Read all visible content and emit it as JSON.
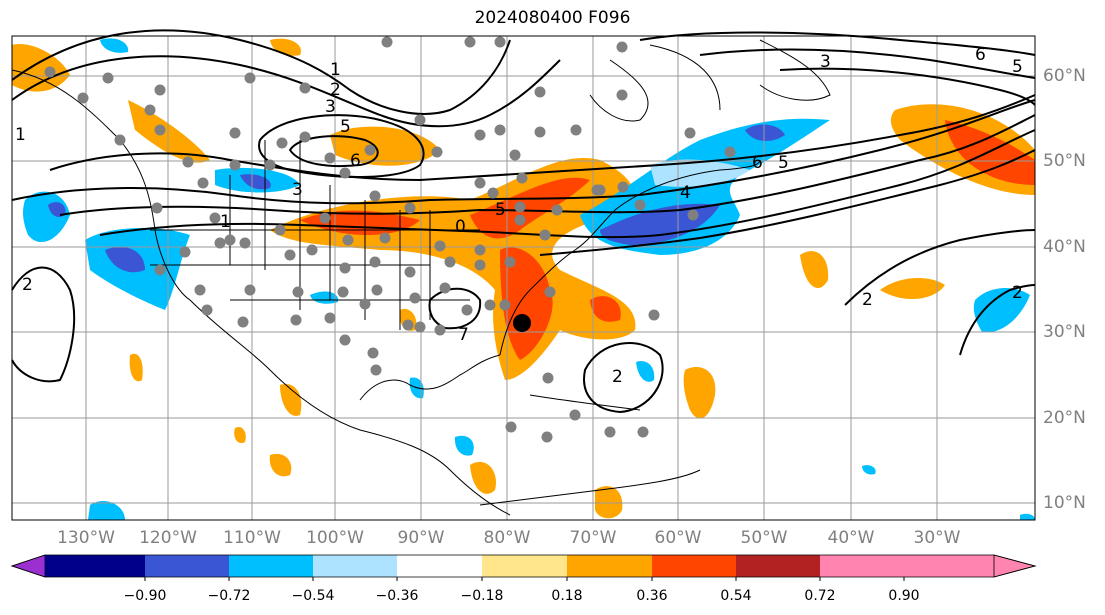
{
  "title": "2024080400 F096",
  "longitude_labels": [
    "130°W",
    "120°W",
    "110°W",
    "100°W",
    "90°W",
    "80°W",
    "70°W",
    "60°W",
    "50°W",
    "40°W",
    "30°W"
  ],
  "latitude_labels": [
    "60°N",
    "50°N",
    "40°N",
    "30°N",
    "20°N",
    "10°N"
  ],
  "colorbar": {
    "tick_labels": [
      "−0.90",
      "−0.72",
      "−0.54",
      "−0.36",
      "−0.18",
      "0.18",
      "0.36",
      "0.54",
      "0.72",
      "0.90"
    ],
    "colors": [
      "#9b2fd0",
      "#00008b",
      "#3a56d4",
      "#00bfff",
      "#aee3ff",
      "#ffffff",
      "#ffe68a",
      "#ffa500",
      "#ff4500",
      "#b22222",
      "#ff85b0"
    ]
  },
  "contour_labels": [
    "1",
    "2",
    "3",
    "5",
    "6",
    "1",
    "3",
    "1",
    "2",
    "0",
    "5",
    "6",
    "4",
    "5",
    "6",
    "3",
    "5",
    "2",
    "2",
    "7",
    "2"
  ],
  "marker_colors": {
    "stations": "#808080",
    "highlight": "#000000"
  }
}
